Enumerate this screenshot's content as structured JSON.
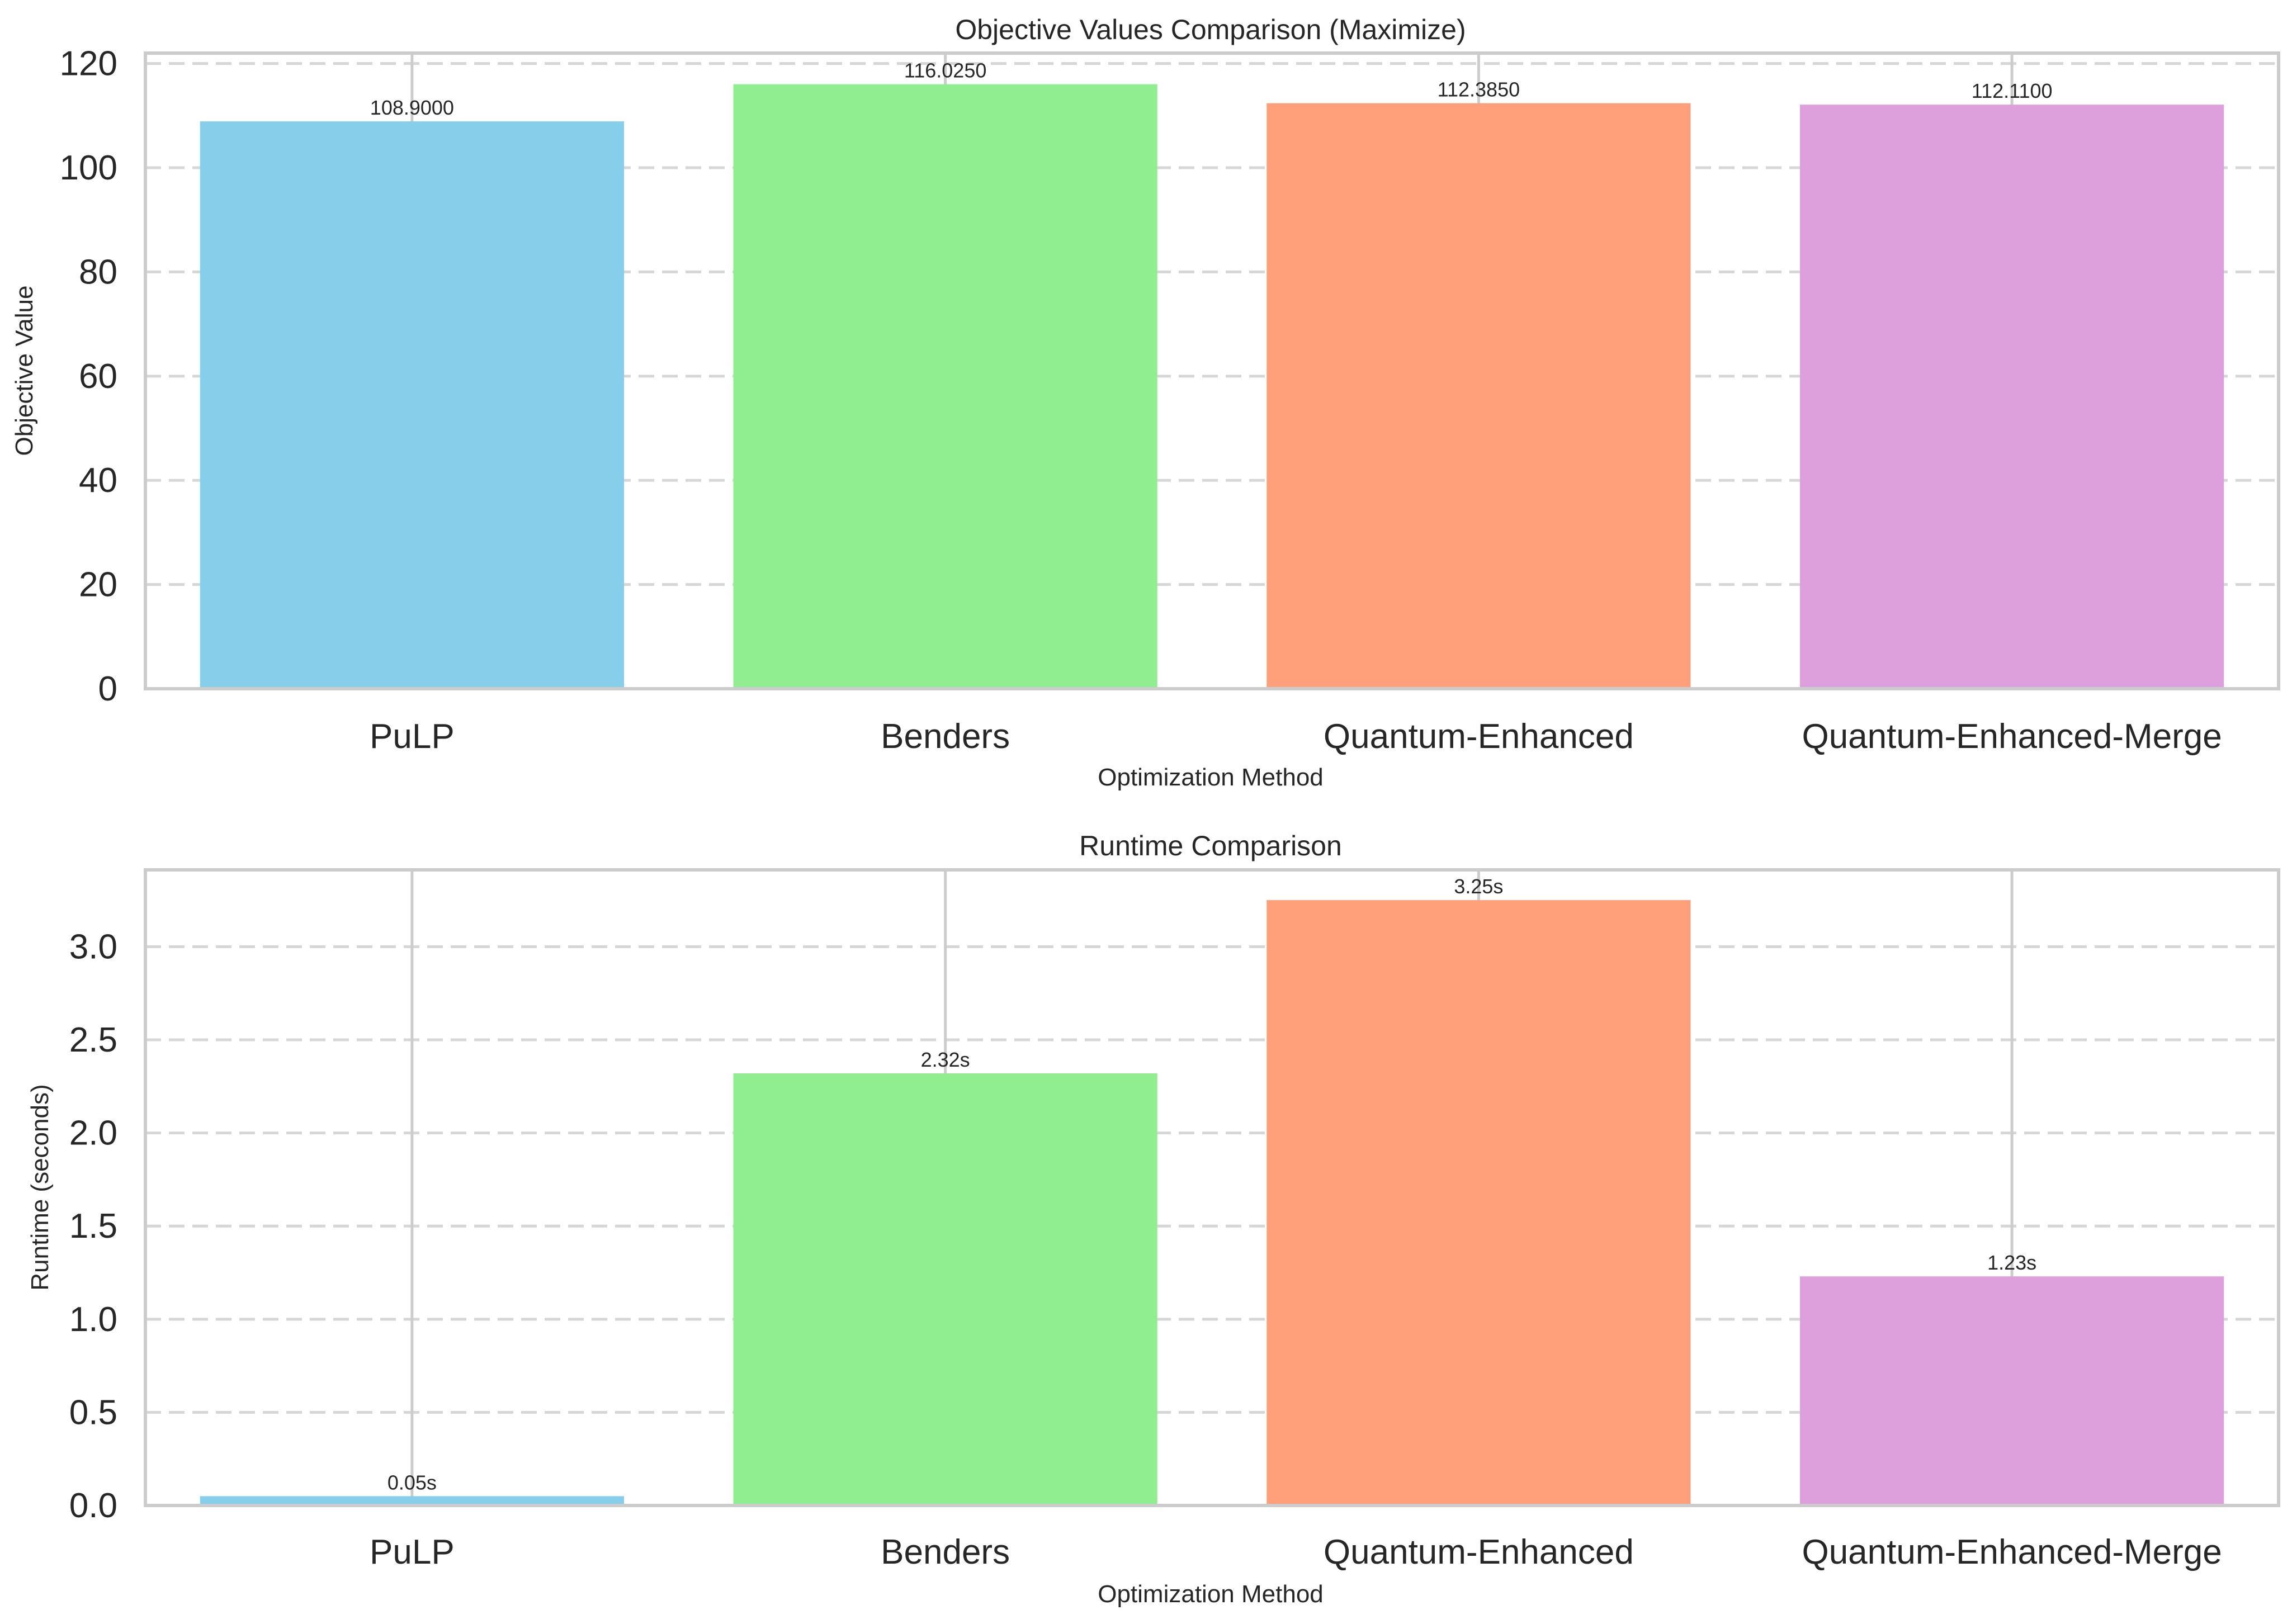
{
  "chart_data": [
    {
      "type": "bar",
      "title": "Objective Values Comparison (Maximize)",
      "xlabel": "Optimization Method",
      "ylabel": "Objective Value",
      "categories": [
        "PuLP",
        "Benders",
        "Quantum-Enhanced",
        "Quantum-Enhanced-Merge"
      ],
      "values": [
        108.9,
        116.025,
        112.385,
        112.11
      ],
      "value_labels": [
        "108.9000",
        "116.0250",
        "112.3850",
        "112.1100"
      ],
      "colors": [
        "#87CEEB",
        "#90EE90",
        "#FFA07A",
        "#DDA0DD"
      ],
      "ylim": [
        0,
        122
      ],
      "yticks": [
        0,
        20,
        40,
        60,
        80,
        100,
        120
      ],
      "ytick_labels": [
        "0",
        "20",
        "40",
        "60",
        "80",
        "100",
        "120"
      ],
      "grid": true
    },
    {
      "type": "bar",
      "title": "Runtime Comparison",
      "xlabel": "Optimization Method",
      "ylabel": "Runtime (seconds)",
      "categories": [
        "PuLP",
        "Benders",
        "Quantum-Enhanced",
        "Quantum-Enhanced-Merge"
      ],
      "values": [
        0.05,
        2.32,
        3.25,
        1.23
      ],
      "value_labels": [
        "0.05s",
        "2.32s",
        "3.25s",
        "1.23s"
      ],
      "colors": [
        "#87CEEB",
        "#90EE90",
        "#FFA07A",
        "#DDA0DD"
      ],
      "ylim": [
        0,
        3.4125
      ],
      "yticks": [
        0,
        0.5,
        1,
        1.5,
        2,
        2.5,
        3
      ],
      "ytick_labels": [
        "0.0",
        "0.5",
        "1.0",
        "1.5",
        "2.0",
        "2.5",
        "3.0"
      ],
      "grid": true
    }
  ]
}
